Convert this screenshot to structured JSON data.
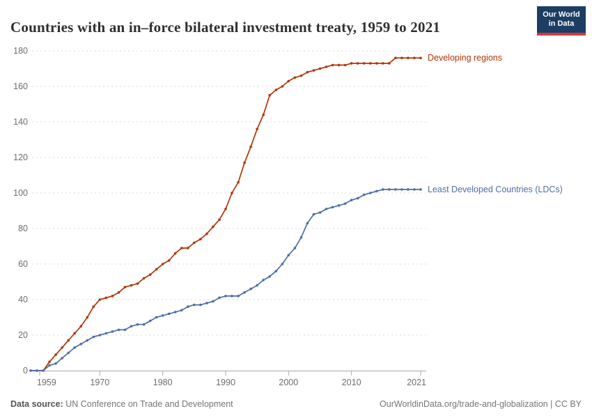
{
  "header": {
    "title": "Countries with an in–force bilateral investment treaty, 1959 to 2021",
    "logo": {
      "line1": "Our World",
      "line2": "in Data"
    }
  },
  "footer": {
    "source_label": "Data source:",
    "source_text": "UN Conference on Trade and Development",
    "right_text": "OurWorldinData.org/trade-and-globalization | CC BY"
  },
  "chart_data": {
    "type": "line",
    "title": "Countries with an in–force bilateral investment treaty, 1959 to 2021",
    "xlabel": "",
    "ylabel": "",
    "xlim": [
      1959,
      2021
    ],
    "ylim": [
      0,
      180
    ],
    "grid": true,
    "legend_position": "right-of-line-end",
    "x_ticks": [
      1959,
      1970,
      1980,
      1990,
      2000,
      2010,
      2021
    ],
    "y_ticks": [
      0,
      20,
      40,
      60,
      80,
      100,
      120,
      140,
      160,
      180
    ],
    "years": [
      1959,
      1960,
      1961,
      1962,
      1963,
      1964,
      1965,
      1966,
      1967,
      1968,
      1969,
      1970,
      1971,
      1972,
      1973,
      1974,
      1975,
      1976,
      1977,
      1978,
      1979,
      1980,
      1981,
      1982,
      1983,
      1984,
      1985,
      1986,
      1987,
      1988,
      1989,
      1990,
      1991,
      1992,
      1993,
      1994,
      1995,
      1996,
      1997,
      1998,
      1999,
      2000,
      2001,
      2002,
      2003,
      2004,
      2005,
      2006,
      2007,
      2008,
      2009,
      2010,
      2011,
      2012,
      2013,
      2014,
      2015,
      2016,
      2017,
      2018,
      2019,
      2020,
      2021
    ],
    "series": [
      {
        "name": "Developing regions",
        "color": "#b13507",
        "values": [
          0,
          0,
          0,
          5,
          9,
          13,
          17,
          21,
          25,
          30,
          36,
          40,
          41,
          42,
          44,
          47,
          48,
          49,
          52,
          54,
          57,
          60,
          62,
          66,
          69,
          69,
          72,
          74,
          77,
          81,
          85,
          91,
          100,
          106,
          117,
          126,
          136,
          144,
          155,
          158,
          160,
          163,
          165,
          166,
          168,
          169,
          170,
          171,
          172,
          172,
          172,
          173,
          173,
          173,
          173,
          173,
          173,
          173,
          176,
          176,
          176,
          176,
          176
        ]
      },
      {
        "name": "Least Developed Countries (LDCs)",
        "color": "#4c6fa5",
        "values": [
          0,
          0,
          0,
          3,
          4,
          7,
          10,
          13,
          15,
          17,
          19,
          20,
          21,
          22,
          23,
          23,
          25,
          26,
          26,
          28,
          30,
          31,
          32,
          33,
          34,
          36,
          37,
          37,
          38,
          39,
          41,
          42,
          42,
          42,
          44,
          46,
          48,
          51,
          53,
          56,
          60,
          65,
          69,
          75,
          83,
          88,
          89,
          91,
          92,
          93,
          94,
          96,
          97,
          99,
          100,
          101,
          102,
          102,
          102,
          102,
          102,
          102,
          102
        ]
      }
    ]
  }
}
